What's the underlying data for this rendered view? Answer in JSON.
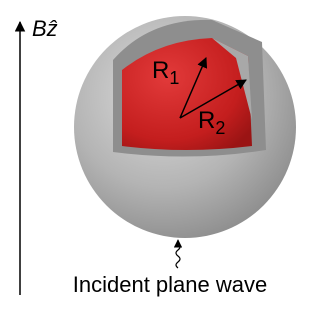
{
  "field_label": "Bẑ",
  "radii": [
    {
      "symbol": "R",
      "subscript": "1"
    },
    {
      "symbol": "R",
      "subscript": "2"
    }
  ],
  "caption": "Incident plane wave"
}
